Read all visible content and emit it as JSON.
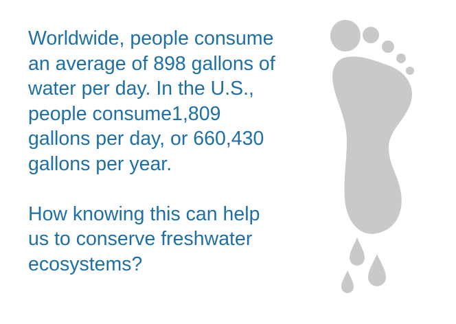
{
  "paragraph1": {
    "lines": [
      "Worldwide, people consume",
      "an average of 898 gallons of",
      "water per day. In the U.S.,",
      "people consume1,809",
      "gallons per day, or 660,430",
      "gallons per year."
    ]
  },
  "paragraph2": {
    "lines": [
      "How knowing this can help",
      "us to conserve freshwater",
      "ecosystems?"
    ]
  },
  "colors": {
    "text": "#1d6fa5",
    "footprint": "#c9c9c9"
  },
  "icons": {
    "footprint": "footprint-icon",
    "drops": "water-drop-icon"
  }
}
